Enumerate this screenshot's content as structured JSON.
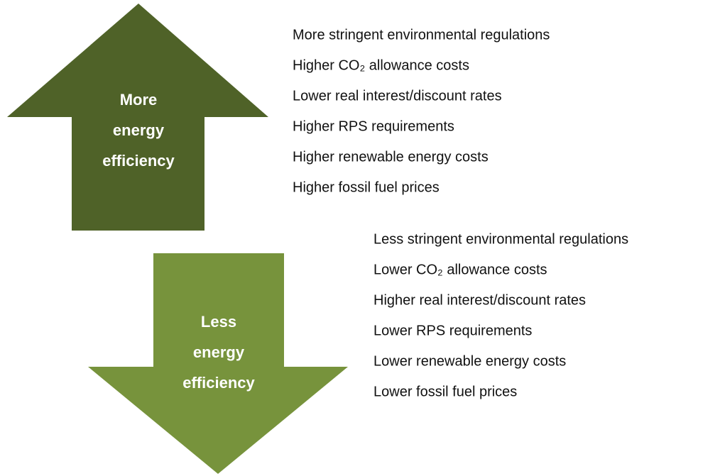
{
  "up": {
    "label": [
      "More",
      "energy",
      "efficiency"
    ],
    "items": [
      "More stringent environmental regulations",
      "Higher CO₂ allowance costs",
      "Lower real interest/discount rates",
      "Higher RPS requirements",
      "Higher renewable energy costs",
      "Higher fossil fuel prices"
    ]
  },
  "down": {
    "label": [
      "Less",
      "energy",
      "efficiency"
    ],
    "items": [
      "Less stringent environmental regulations",
      "Lower CO₂ allowance costs",
      "Higher real interest/discount rates",
      "Lower RPS requirements",
      "Lower renewable energy costs",
      "Lower fossil fuel prices"
    ]
  }
}
